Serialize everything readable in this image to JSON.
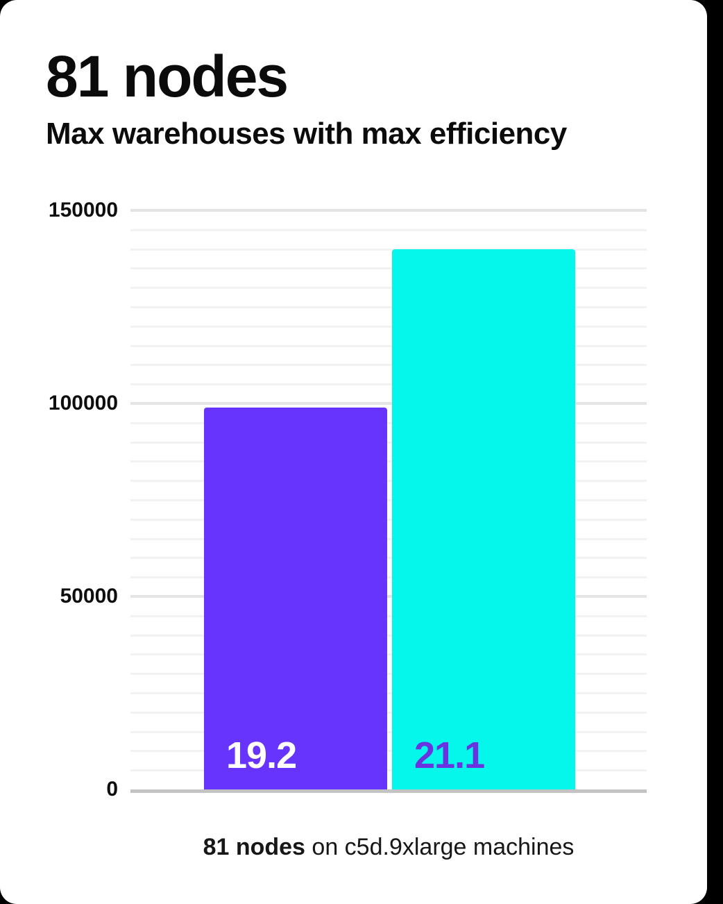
{
  "page": {
    "background_color": "#000000",
    "card_color": "#ffffff"
  },
  "header": {
    "title": "81 nodes",
    "subtitle": "Max warehouses with max efficiency"
  },
  "chart_data": {
    "type": "bar",
    "title": "81 nodes",
    "subtitle": "Max warehouses with max efficiency",
    "categories": [
      "19.2",
      "21.1"
    ],
    "values": [
      99000,
      140000
    ],
    "bar_labels": [
      "19.2",
      "21.1"
    ],
    "bar_colors": [
      "#6734fe",
      "#05f6ea"
    ],
    "bar_label_colors": [
      "#ffffff",
      "#6933e0"
    ],
    "xlabel": "",
    "ylabel": "",
    "ylim": [
      0,
      150000
    ],
    "yticks": [
      0,
      50000,
      100000,
      150000
    ],
    "ytick_labels": [
      "0",
      "50000",
      "100000",
      "150000"
    ],
    "minor_grid_step": 5000,
    "grid": true,
    "legend": false
  },
  "caption": {
    "bold": "81 nodes",
    "rest": " on c5d.9xlarge machines"
  },
  "colors": {
    "purple_bar": "#6734fe",
    "cyan_bar": "#05f6ea",
    "purple_label_on_cyan": "#6933e0",
    "major_gridline": "#e4e4e4",
    "minor_gridline": "#f2f2f2",
    "axis_line": "#c3c3c3",
    "text": "#0b0b0b"
  }
}
